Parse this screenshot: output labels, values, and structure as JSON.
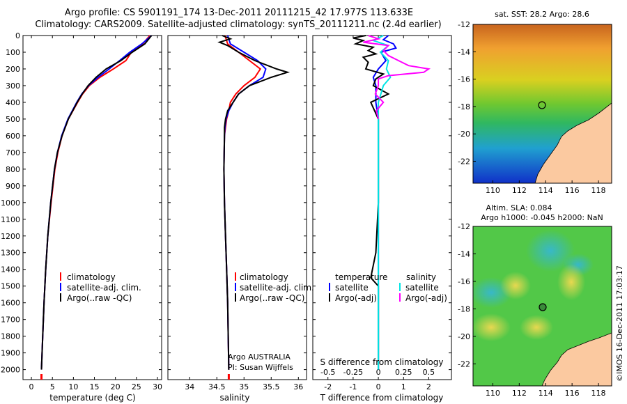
{
  "header": {
    "line1": "Argo profile: CS 5901191_174 13-Dec-2011 20111215_42 17.977S 113.633E",
    "line2": "Climatology: CARS2009. Satellite-adjusted climatology: synTS_20111211.nc (2.4d earlier)"
  },
  "depth_ticks": [
    "0",
    "100",
    "200",
    "300",
    "400",
    "500",
    "600",
    "700",
    "800",
    "900",
    "1000",
    "1100",
    "1200",
    "1300",
    "1400",
    "1500",
    "1600",
    "1700",
    "1800",
    "1900",
    "2000"
  ],
  "colors": {
    "climatology": "#ff0000",
    "satellite": "#0000ff",
    "argo": "#000000",
    "sat_salinity": "#00e5e5",
    "argo_salinity": "#ff00ff",
    "land": "#fbc9a0"
  },
  "chart_data": [
    {
      "type": "line",
      "xlabel": "temperature (deg C)",
      "xlim": [
        -2,
        31
      ],
      "ylim": [
        2060,
        0
      ],
      "xticks": [
        "0",
        "5",
        "10",
        "15",
        "20",
        "25",
        "30"
      ],
      "legend": {
        "placement": "lower-middle",
        "entries": [
          "climatology",
          "satellite-adj. clim.",
          "Argo(..raw -QC)"
        ]
      },
      "series": [
        {
          "name": "climatology",
          "depth": [
            0,
            50,
            100,
            150,
            200,
            250,
            300,
            350,
            400,
            500,
            600,
            700,
            800,
            1000,
            1200,
            1400,
            1600,
            1800,
            2000
          ],
          "values": [
            28.2,
            26.5,
            23.8,
            22.5,
            19.5,
            16.3,
            13.8,
            12.2,
            11.0,
            8.8,
            7.3,
            6.3,
            5.6,
            4.7,
            3.9,
            3.4,
            3.0,
            2.7,
            2.4
          ]
        },
        {
          "name": "satellite-adj. clim.",
          "depth": [
            0,
            50,
            100,
            150,
            200,
            250,
            300,
            350,
            400,
            500,
            600,
            700,
            800,
            1000,
            1200,
            1400,
            1600,
            1800,
            2000
          ],
          "values": [
            28.6,
            26.3,
            23.4,
            21.0,
            18.5,
            15.9,
            13.6,
            12.0,
            10.8,
            8.7,
            7.2,
            6.2,
            5.5,
            4.6,
            3.9,
            3.4,
            3.0,
            2.7,
            2.4
          ]
        },
        {
          "name": "Argo(..raw -QC)",
          "depth": [
            0,
            50,
            100,
            150,
            200,
            250,
            300,
            350,
            400,
            500,
            600,
            700,
            800,
            1000,
            1200,
            1400,
            1600,
            1800,
            2000
          ],
          "values": [
            28.6,
            27.0,
            24.0,
            21.3,
            17.8,
            15.4,
            13.5,
            12.1,
            10.9,
            8.8,
            7.3,
            6.2,
            5.5,
            4.6,
            3.9,
            3.4,
            3.0,
            2.7,
            2.4
          ]
        }
      ]
    },
    {
      "type": "line",
      "xlabel": "salinity",
      "xlim": [
        33.6,
        36.15
      ],
      "ylim": [
        2060,
        0
      ],
      "xticks": [
        "34",
        "34.5",
        "35",
        "35.5",
        "36"
      ],
      "legend": {
        "placement": "lower-right",
        "entries": [
          "climatology",
          "satellite-adj. clim.",
          "Argo(..raw -QC)"
        ]
      },
      "annotations": [
        "Argo AUSTRALIA",
        "PI: Susan Wijffels"
      ],
      "series": [
        {
          "name": "climatology",
          "depth": [
            0,
            50,
            100,
            150,
            200,
            250,
            300,
            350,
            400,
            450,
            500,
            550,
            600,
            800,
            1000,
            1200,
            1400,
            1600,
            1800,
            2000
          ],
          "values": [
            34.65,
            34.7,
            34.9,
            35.1,
            35.3,
            35.2,
            35.0,
            34.85,
            34.75,
            34.72,
            34.68,
            34.66,
            34.64,
            34.63,
            34.64,
            34.66,
            34.68,
            34.7,
            34.71,
            34.72
          ]
        },
        {
          "name": "satellite-adj. clim.",
          "depth": [
            0,
            50,
            100,
            150,
            200,
            250,
            300,
            350,
            400,
            450,
            500,
            550,
            600,
            800,
            1000,
            1200,
            1400,
            1600,
            1800,
            2000
          ],
          "values": [
            34.7,
            34.75,
            35.0,
            35.25,
            35.4,
            35.35,
            35.1,
            34.9,
            34.8,
            34.72,
            34.67,
            34.65,
            34.64,
            34.63,
            34.64,
            34.66,
            34.68,
            34.7,
            34.71,
            34.72
          ]
        },
        {
          "name": "Argo(..raw -QC)",
          "depth": [
            0,
            20,
            40,
            60,
            80,
            100,
            150,
            200,
            220,
            250,
            300,
            350,
            400,
            450,
            500,
            550,
            600,
            800,
            1000,
            1200,
            1400,
            1600,
            1800,
            2000
          ],
          "values": [
            34.6,
            34.75,
            34.55,
            34.7,
            34.8,
            34.9,
            35.2,
            35.6,
            35.8,
            35.5,
            35.1,
            34.9,
            34.8,
            34.7,
            34.66,
            34.64,
            34.64,
            34.63,
            34.64,
            34.66,
            34.68,
            34.7,
            34.71,
            34.72
          ]
        }
      ]
    },
    {
      "type": "line",
      "xlabel": "T difference from climatology",
      "top_label": "S difference from climatology",
      "xlim": [
        -2.6,
        2.9
      ],
      "ylim": [
        2060,
        0
      ],
      "xticks": [
        "-2",
        "-1",
        "0",
        "1",
        "2"
      ],
      "top_xticks": [
        "-0.5",
        "-0.25",
        "0",
        "0.25",
        "0.5"
      ],
      "legend": {
        "placement": "lower-middle",
        "groups": [
          {
            "title": "temperature",
            "entries": [
              "satellite",
              "Argo(-adj)"
            ]
          },
          {
            "title": "salinity",
            "entries": [
              "satellite",
              "Argo(-adj)"
            ]
          }
        ]
      },
      "series": [
        {
          "name": "temperature satellite",
          "depth": [
            0,
            25,
            50,
            75,
            100,
            150,
            200,
            250,
            300,
            400,
            500,
            700,
            1000,
            1500,
            2000
          ],
          "values": [
            0.4,
            0.2,
            0.6,
            0.7,
            0.1,
            0.3,
            0.0,
            -0.2,
            -0.1,
            -0.1,
            0.0,
            0.0,
            0.0,
            0.0,
            0.0
          ]
        },
        {
          "name": "temperature Argo(-adj)",
          "depth": [
            0,
            15,
            30,
            50,
            70,
            90,
            110,
            130,
            160,
            200,
            230,
            260,
            300,
            350,
            400,
            500,
            700,
            1000,
            1300,
            1450,
            1500,
            1600,
            1800,
            2000
          ],
          "values": [
            -0.5,
            -1.0,
            -0.6,
            -0.9,
            -0.2,
            -0.4,
            -0.1,
            -0.6,
            -0.4,
            -0.5,
            0.2,
            -0.1,
            -0.2,
            0.4,
            -0.3,
            0.0,
            0.0,
            0.0,
            -0.1,
            -0.3,
            0.0,
            0.0,
            0.0,
            0.0
          ]
        },
        {
          "name": "salinity satellite",
          "depth": [
            0,
            30,
            60,
            100,
            150,
            200,
            250,
            300,
            400,
            500,
            700,
            1000,
            1500,
            2000
          ],
          "values": [
            0.05,
            -0.05,
            0.1,
            0.02,
            0.1,
            0.08,
            0.12,
            0.05,
            0.0,
            0.0,
            0.0,
            0.0,
            0.0,
            0.0
          ]
        },
        {
          "name": "salinity Argo(-adj)",
          "depth": [
            0,
            20,
            40,
            60,
            90,
            120,
            150,
            180,
            200,
            220,
            240,
            260,
            300,
            350,
            400,
            450,
            500
          ],
          "values": [
            -0.1,
            0.0,
            -0.15,
            0.1,
            0.05,
            0.1,
            0.2,
            0.3,
            0.5,
            0.45,
            0.1,
            0.0,
            0.0,
            -0.03,
            0.05,
            -0.02,
            0.0
          ]
        }
      ]
    },
    {
      "type": "heatmap",
      "title": "sat. SST: 28.2 Argo: 28.6",
      "xticks": [
        "110",
        "112",
        "114",
        "116",
        "118"
      ],
      "yticks": [
        "-12",
        "-14",
        "-16",
        "-18",
        "-20",
        "-22"
      ],
      "xlim": [
        108.5,
        119
      ],
      "ylim": [
        -23.6,
        -12
      ],
      "marker": {
        "lon": 113.633,
        "lat": -17.977
      }
    },
    {
      "type": "heatmap",
      "title": "Altim. SLA: 0.084",
      "subtitle": "Argo h1000: -0.045 h2000: NaN",
      "xticks": [
        "110",
        "112",
        "114",
        "116",
        "118"
      ],
      "yticks": [
        "-12",
        "-14",
        "-16",
        "-18",
        "-20",
        "-22"
      ],
      "xlim": [
        108.5,
        119
      ],
      "ylim": [
        -23.6,
        -12
      ],
      "marker": {
        "lon": 113.633,
        "lat": -17.977
      }
    }
  ],
  "side_stamp": "©IMOS 16-Dec-2011 17:03:17"
}
